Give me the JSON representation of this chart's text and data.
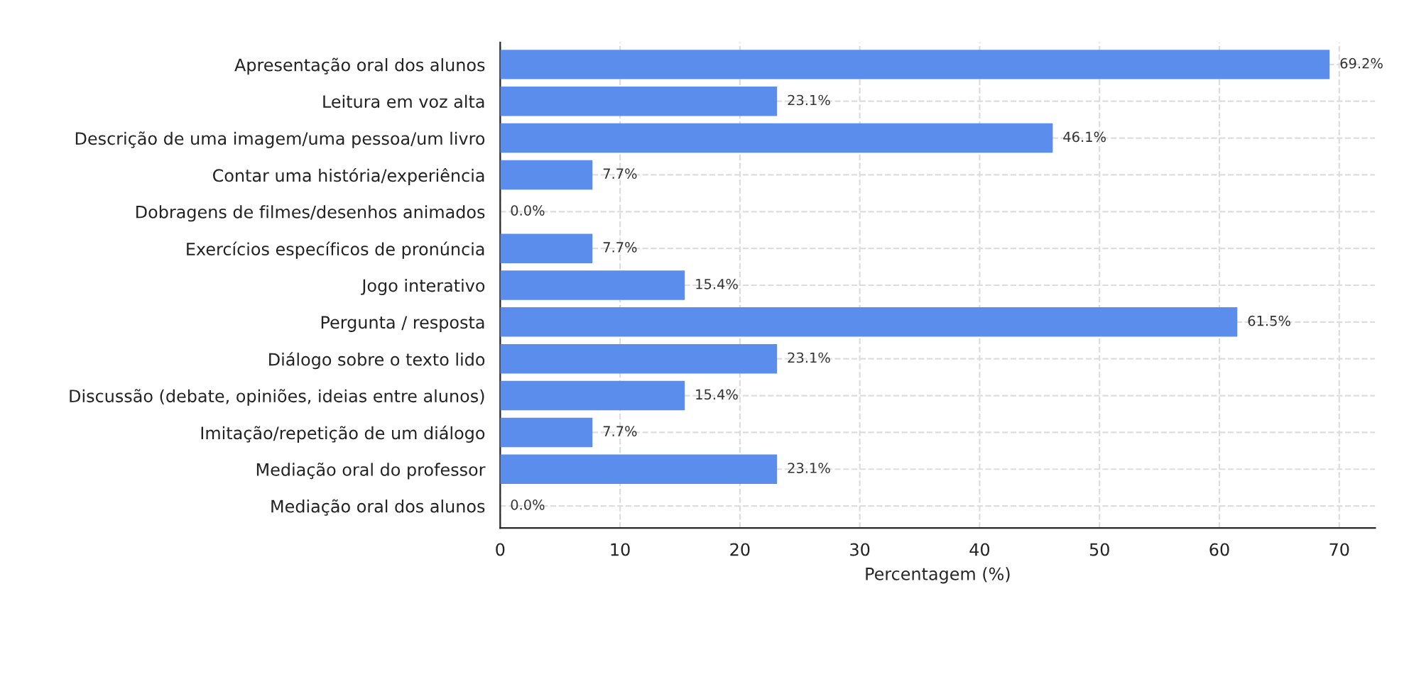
{
  "chart_data": {
    "type": "bar",
    "orientation": "horizontal",
    "xlabel": "Percentagem (%)",
    "categories": [
      "Apresentação oral dos alunos",
      "Leitura em voz alta",
      "Descrição de uma imagem/uma pessoa/um livro",
      "Contar uma história/experiência",
      "Dobragens de filmes/desenhos animados",
      "Exercícios específicos de pronúncia",
      "Jogo interativo",
      "Pergunta / resposta",
      "Diálogo sobre o texto lido",
      "Discussão (debate, opiniões, ideias entre alunos)",
      "Imitação/repetição de um diálogo",
      "Mediação oral do professor",
      "Mediação oral dos alunos"
    ],
    "values": [
      69.2,
      23.1,
      46.1,
      7.7,
      0.0,
      7.7,
      15.4,
      61.5,
      23.1,
      15.4,
      7.7,
      23.1,
      0.0
    ],
    "value_labels": [
      "69.2%",
      "23.1%",
      "46.1%",
      "7.7%",
      "0.0%",
      "7.7%",
      "15.4%",
      "61.5%",
      "23.1%",
      "15.4%",
      "7.7%",
      "23.1%",
      "0.0%"
    ],
    "color": "#5b8ded",
    "xlim": [
      0,
      73
    ],
    "xticks": [
      0,
      10,
      20,
      30,
      40,
      50,
      60,
      70
    ],
    "grid": true
  }
}
